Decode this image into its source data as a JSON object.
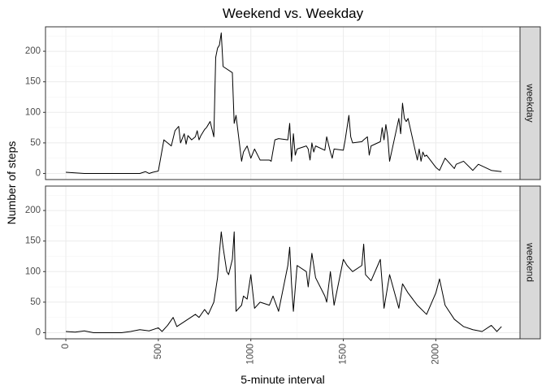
{
  "chart_data": {
    "type": "line",
    "title": "Weekend vs. Weekday",
    "xlabel": "5-minute interval",
    "ylabel": "Number of steps",
    "xlim": [
      -110,
      2455
    ],
    "ylim": [
      -10,
      240
    ],
    "x_ticks": [
      0,
      500,
      1000,
      1500,
      2000
    ],
    "x_tick_labels": [
      "0",
      "500",
      "1000",
      "1500",
      "2000"
    ],
    "y_ticks": [
      0,
      50,
      100,
      150,
      200
    ],
    "y_tick_labels": [
      "0",
      "50",
      "100",
      "150",
      "200"
    ],
    "grid": true,
    "facets": [
      {
        "name": "weekday",
        "x": [
          0,
          50,
          100,
          150,
          200,
          250,
          300,
          350,
          400,
          430,
          450,
          470,
          500,
          530,
          550,
          570,
          590,
          610,
          620,
          640,
          650,
          660,
          680,
          700,
          710,
          720,
          730,
          750,
          760,
          770,
          780,
          800,
          810,
          820,
          830,
          840,
          850,
          900,
          910,
          920,
          950,
          960,
          980,
          1000,
          1020,
          1050,
          1100,
          1110,
          1130,
          1150,
          1200,
          1210,
          1220,
          1230,
          1240,
          1250,
          1300,
          1310,
          1320,
          1330,
          1340,
          1350,
          1400,
          1410,
          1430,
          1440,
          1450,
          1500,
          1510,
          1530,
          1540,
          1550,
          1600,
          1610,
          1630,
          1640,
          1650,
          1700,
          1710,
          1720,
          1730,
          1740,
          1750,
          1800,
          1810,
          1820,
          1830,
          1840,
          1850,
          1900,
          1910,
          1920,
          1930,
          1940,
          1950,
          2000,
          2020,
          2050,
          2100,
          2110,
          2150,
          2200,
          2230,
          2300,
          2355
        ],
        "values": [
          2,
          1,
          0,
          0,
          0,
          0,
          0,
          0,
          0,
          3,
          0,
          2,
          4,
          55,
          50,
          45,
          70,
          77,
          50,
          65,
          48,
          62,
          55,
          60,
          70,
          55,
          62,
          72,
          75,
          80,
          85,
          60,
          190,
          205,
          210,
          230,
          175,
          165,
          82,
          95,
          20,
          35,
          45,
          25,
          40,
          22,
          22,
          20,
          55,
          57,
          55,
          82,
          20,
          65,
          30,
          40,
          45,
          40,
          22,
          50,
          35,
          45,
          38,
          60,
          35,
          25,
          40,
          38,
          55,
          95,
          60,
          50,
          52,
          55,
          60,
          30,
          45,
          52,
          75,
          55,
          80,
          60,
          20,
          90,
          65,
          115,
          90,
          85,
          90,
          22,
          40,
          20,
          35,
          28,
          30,
          10,
          5,
          25,
          8,
          15,
          20,
          5,
          15,
          5,
          3
        ]
      },
      {
        "name": "weekend",
        "x": [
          0,
          50,
          100,
          150,
          200,
          250,
          300,
          350,
          400,
          450,
          500,
          520,
          550,
          580,
          600,
          650,
          700,
          720,
          750,
          770,
          800,
          820,
          830,
          840,
          850,
          870,
          880,
          900,
          910,
          920,
          950,
          960,
          980,
          1000,
          1020,
          1050,
          1100,
          1120,
          1150,
          1200,
          1210,
          1220,
          1230,
          1250,
          1300,
          1310,
          1330,
          1350,
          1400,
          1410,
          1430,
          1450,
          1500,
          1520,
          1550,
          1600,
          1610,
          1620,
          1650,
          1700,
          1720,
          1750,
          1800,
          1820,
          1850,
          1900,
          1950,
          2000,
          2020,
          2050,
          2100,
          2150,
          2200,
          2250,
          2300,
          2330,
          2355
        ],
        "values": [
          2,
          1,
          3,
          0,
          0,
          0,
          0,
          2,
          5,
          3,
          8,
          2,
          12,
          25,
          10,
          20,
          30,
          25,
          38,
          30,
          50,
          90,
          130,
          165,
          140,
          100,
          95,
          120,
          165,
          35,
          45,
          60,
          55,
          95,
          40,
          50,
          45,
          60,
          35,
          110,
          140,
          80,
          35,
          110,
          100,
          75,
          130,
          90,
          60,
          50,
          100,
          45,
          120,
          110,
          100,
          110,
          145,
          95,
          85,
          120,
          40,
          95,
          40,
          80,
          65,
          45,
          30,
          65,
          88,
          45,
          22,
          10,
          5,
          2,
          12,
          2,
          10
        ]
      }
    ]
  }
}
